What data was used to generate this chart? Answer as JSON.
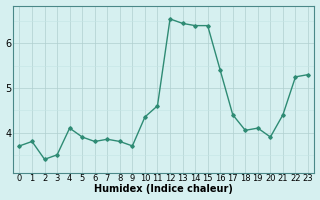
{
  "x": [
    0,
    1,
    2,
    3,
    4,
    5,
    6,
    7,
    8,
    9,
    10,
    11,
    12,
    13,
    14,
    15,
    16,
    17,
    18,
    19,
    20,
    21,
    22,
    23
  ],
  "y": [
    3.7,
    3.8,
    3.4,
    3.5,
    4.1,
    3.9,
    3.8,
    3.85,
    3.8,
    3.7,
    4.35,
    4.6,
    6.55,
    6.45,
    6.4,
    6.4,
    5.4,
    4.4,
    4.05,
    4.1,
    3.9,
    4.4,
    5.25,
    5.3
  ],
  "line_color": "#2e8b74",
  "marker": "D",
  "marker_size": 1.8,
  "line_width": 1.0,
  "background_color": "#d6f0f0",
  "grid_color_major": "#b0cfcf",
  "grid_color_minor": "#c4e4e4",
  "xlabel": "Humidex (Indice chaleur)",
  "xlabel_fontsize": 7,
  "tick_fontsize": 6,
  "yticks": [
    4,
    5,
    6
  ],
  "ylim": [
    3.1,
    6.85
  ],
  "xlim": [
    -0.5,
    23.5
  ]
}
